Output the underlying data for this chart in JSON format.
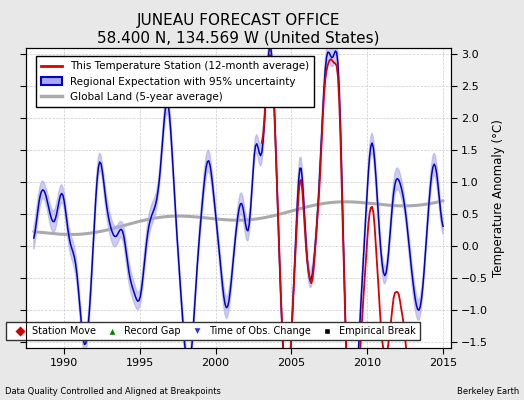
{
  "title": "JUNEAU FORECAST OFFICE",
  "subtitle": "58.400 N, 134.569 W (United States)",
  "xlabel_left": "Data Quality Controlled and Aligned at Breakpoints",
  "xlabel_right": "Berkeley Earth",
  "ylabel": "Temperature Anomaly (°C)",
  "xlim": [
    1987.5,
    2015.5
  ],
  "ylim": [
    -1.6,
    3.1
  ],
  "yticks": [
    -1.5,
    -1.0,
    -0.5,
    0.0,
    0.5,
    1.0,
    1.5,
    2.0,
    2.5,
    3.0
  ],
  "xticks": [
    1990,
    1995,
    2000,
    2005,
    2010,
    2015
  ],
  "bg_color": "#e8e8e8",
  "plot_bg_color": "#ffffff",
  "station_color": "#dd0000",
  "regional_color": "#0000cc",
  "regional_fill_color": "#aaaaee",
  "global_color": "#aaaaaa",
  "title_fontsize": 11,
  "subtitle_fontsize": 9,
  "axis_fontsize": 8,
  "legend_fontsize": 7.5
}
